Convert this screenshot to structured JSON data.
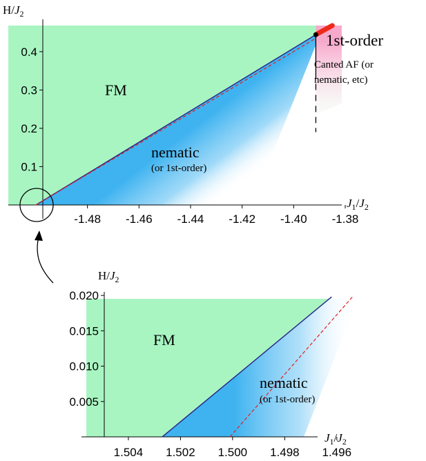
{
  "chart_data": [
    {
      "type": "area",
      "ylabel_prefix": "H/",
      "ylabel_italic": "J",
      "ylabel_sub": "2",
      "xlabel_italic1": "J",
      "xlabel_sub1": "1",
      "xlabel_mid": "/",
      "xlabel_italic2": "J",
      "xlabel_sub2": "2",
      "xlim": [
        -1.5,
        -1.38
      ],
      "ylim": [
        0,
        0.47
      ],
      "xticks": [
        -1.48,
        -1.46,
        -1.44,
        -1.42,
        -1.4,
        -1.38
      ],
      "xtick_labels": [
        "-1.48",
        "-1.46",
        "-1.44",
        "-1.42",
        "-1.40",
        "-1.38"
      ],
      "yticks": [
        0.1,
        0.2,
        0.3,
        0.4
      ],
      "ytick_labels": [
        "0.1",
        "0.2",
        "0.3",
        "0.4"
      ],
      "boundary_line": {
        "x": [
          -1.5,
          -1.3914
        ],
        "y": [
          0,
          0.4444
        ]
      },
      "dashed_line": {
        "x": [
          -1.5,
          -1.3914
        ],
        "y": [
          0,
          0.435
        ]
      },
      "first_order_line": {
        "x": [
          -1.3914,
          -1.385
        ],
        "y": [
          0.4444,
          0.47
        ]
      },
      "vertical_dashed_line": {
        "x": -1.3914,
        "y": [
          0.19,
          0.4444
        ]
      },
      "critical_point": {
        "x": -1.3914,
        "y": 0.4444
      },
      "region_labels": {
        "fm": "FM",
        "nematic": "nematic",
        "nematic_sub": "(or 1st-order)",
        "first_order": "1st-order",
        "canted_1": "Canted AF (or",
        "canted_2": "nematic, etc)"
      }
    },
    {
      "type": "area",
      "ylabel_prefix": "H/",
      "ylabel_italic": "J",
      "ylabel_sub": "2",
      "xlabel_italic1": "J",
      "xlabel_sub1": "1",
      "xlabel_mid": "/",
      "xlabel_italic2": "J",
      "xlabel_sub2": "2",
      "xlim": [
        1.5058,
        1.4952
      ],
      "ylim": [
        0,
        0.0205
      ],
      "xticks": [
        1.504,
        1.502,
        1.5,
        1.498,
        1.496
      ],
      "xtick_labels": [
        "1.504",
        "1.502",
        "1.500",
        "1.498",
        "1.496"
      ],
      "yticks": [
        0.005,
        0.01,
        0.015,
        0.02
      ],
      "ytick_labels": [
        "0.005",
        "0.010",
        "0.015",
        "0.020"
      ],
      "boundary_line": {
        "x": [
          1.5027,
          1.4962
        ],
        "y": [
          0,
          0.0198
        ]
      },
      "dashed_line": {
        "x": [
          1.5001,
          1.4954
        ],
        "y": [
          0,
          0.0198
        ]
      },
      "region_labels": {
        "fm": "FM",
        "nematic": "nematic",
        "nematic_sub": "(or 1st-order)"
      }
    }
  ]
}
